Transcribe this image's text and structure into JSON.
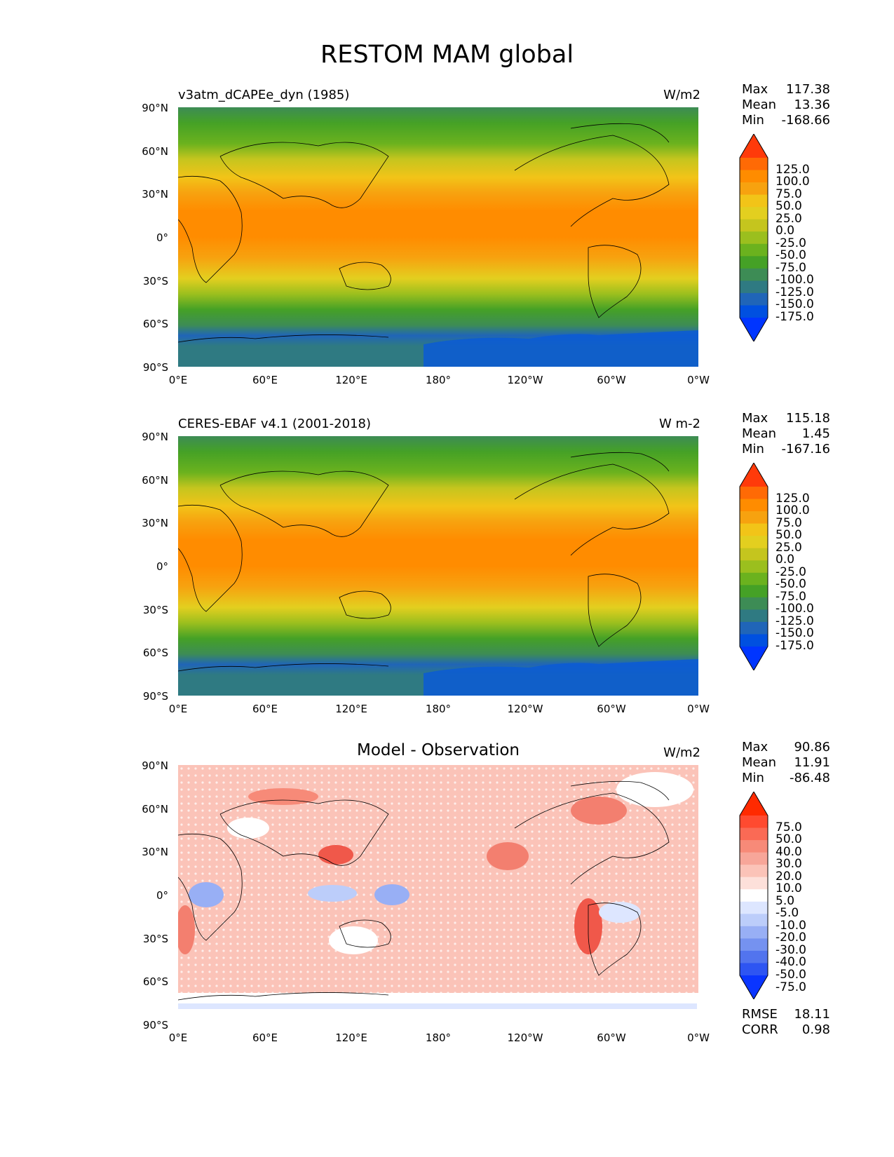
{
  "title": "RESTOM MAM global",
  "lat_labels": [
    "90°N",
    "60°N",
    "30°N",
    "0°",
    "30°S",
    "60°S",
    "90°S"
  ],
  "lon_labels": [
    "0°E",
    "60°E",
    "120°E",
    "180°",
    "120°W",
    "60°W",
    "0°W"
  ],
  "panels": [
    {
      "title": "v3atm_dCAPEe_dyn (1985)",
      "units": "W/m2",
      "stats": {
        "max_label": "Max",
        "max": "117.38",
        "mean_label": "Mean",
        "mean": "13.36",
        "min_label": "Min",
        "min": "-168.66"
      },
      "colorbar": {
        "labels": [
          "125.0",
          "100.0",
          "75.0",
          "50.0",
          "25.0",
          "0.0",
          "-25.0",
          "-50.0",
          "-75.0",
          "-100.0",
          "-125.0",
          "-150.0",
          "-175.0"
        ],
        "colors": [
          "#ff3a0a",
          "#ff6a05",
          "#ff8c00",
          "#f7a20f",
          "#f2c418",
          "#e3cf1f",
          "#c5c51e",
          "#9bbf1e",
          "#6bb21e",
          "#45a126",
          "#3d8c55",
          "#2f7a82",
          "#2065b8",
          "#0050e0",
          "#0035ff"
        ]
      }
    },
    {
      "title": "CERES-EBAF v4.1 (2001-2018)",
      "units": "W m-2",
      "stats": {
        "max_label": "Max",
        "max": "115.18",
        "mean_label": "Mean",
        "mean": "1.45",
        "min_label": "Min",
        "min": "-167.16"
      },
      "colorbar": {
        "labels": [
          "125.0",
          "100.0",
          "75.0",
          "50.0",
          "25.0",
          "0.0",
          "-25.0",
          "-50.0",
          "-75.0",
          "-100.0",
          "-125.0",
          "-150.0",
          "-175.0"
        ],
        "colors": [
          "#ff3a0a",
          "#ff6a05",
          "#ff8c00",
          "#f7a20f",
          "#f2c418",
          "#e3cf1f",
          "#c5c51e",
          "#9bbf1e",
          "#6bb21e",
          "#45a126",
          "#3d8c55",
          "#2f7a82",
          "#2065b8",
          "#0050e0",
          "#0035ff"
        ]
      }
    },
    {
      "title": "Model - Observation",
      "units": "W/m2",
      "stats": {
        "max_label": "Max",
        "max": "90.86",
        "mean_label": "Mean",
        "mean": "11.91",
        "min_label": "Min",
        "min": "-86.48"
      },
      "colorbar": {
        "labels": [
          "75.0",
          "50.0",
          "40.0",
          "30.0",
          "20.0",
          "10.0",
          "5.0",
          "-5.0",
          "-10.0",
          "-20.0",
          "-30.0",
          "-40.0",
          "-50.0",
          "-75.0"
        ],
        "colors": [
          "#ff2a00",
          "#ff4a30",
          "#fa6a55",
          "#f78a78",
          "#f7a699",
          "#fbc3b8",
          "#fde0da",
          "#ffffff",
          "#dde6ff",
          "#bccdfa",
          "#98aff5",
          "#7592f0",
          "#5274ee",
          "#2e55f2",
          "#0a35ff"
        ]
      },
      "rmse_label": "RMSE",
      "rmse": "18.11",
      "corr_label": "CORR",
      "corr": "0.98"
    }
  ]
}
